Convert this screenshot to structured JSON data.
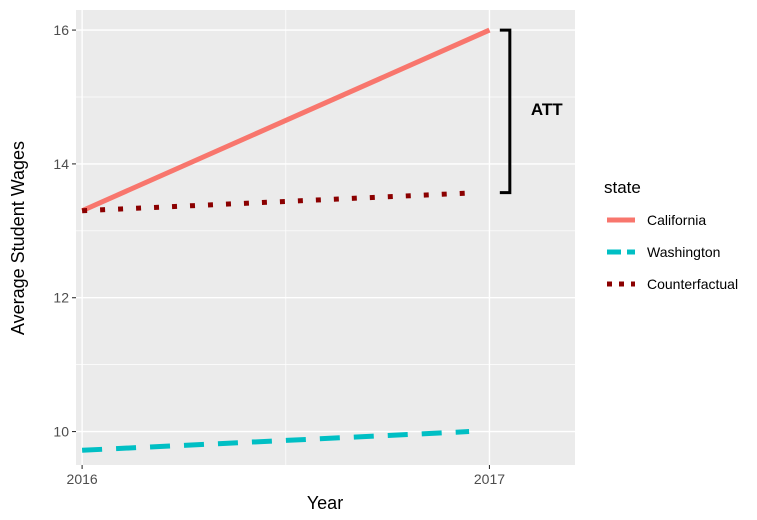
{
  "chart_data": {
    "type": "line",
    "xlabel": "Year",
    "ylabel": "Average Student Wages",
    "x": [
      2016,
      2017
    ],
    "x_tick_labels": [
      "2016",
      "2017"
    ],
    "xlim": [
      2015.985,
      2017.21
    ],
    "y_ticks": [
      10,
      12,
      14,
      16
    ],
    "y_tick_labels": [
      "10",
      "12",
      "14",
      "16"
    ],
    "ylim": [
      9.5,
      16.3
    ],
    "grid": true,
    "legend": {
      "title": "state",
      "placement": "right"
    },
    "series": [
      {
        "name": "California",
        "x": [
          2016,
          2017
        ],
        "values": [
          13.3,
          16.0
        ],
        "color": "#F8766D",
        "line_style": "solid"
      },
      {
        "name": "Washington",
        "x": [
          2016,
          2016.95
        ],
        "values": [
          9.72,
          10.0
        ],
        "color": "#00BFC4",
        "line_style": "dashed"
      },
      {
        "name": "Counterfactual",
        "x": [
          2016,
          2016.97
        ],
        "values": [
          13.3,
          13.57
        ],
        "color": "#8B0000",
        "line_style": "dotted"
      }
    ],
    "annotation": {
      "text": "ATT",
      "bracket_x": 2017.05,
      "bracket_y": [
        13.57,
        16.0
      ]
    }
  }
}
